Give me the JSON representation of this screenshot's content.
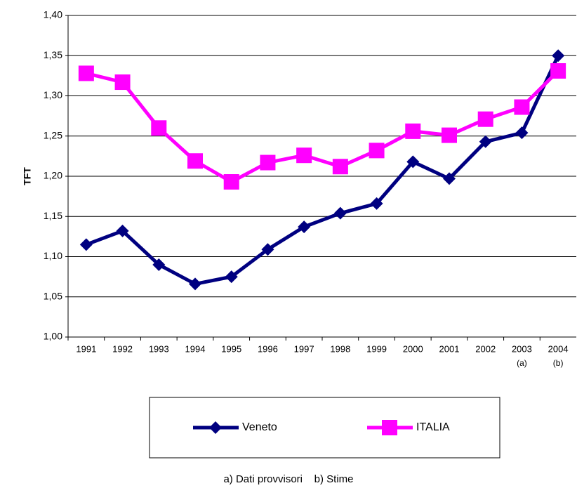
{
  "chart_data": {
    "type": "line",
    "y_label": "TFT",
    "categories": [
      [
        "1991"
      ],
      [
        "1992"
      ],
      [
        "1993"
      ],
      [
        "1994"
      ],
      [
        "1995"
      ],
      [
        "1996"
      ],
      [
        "1997"
      ],
      [
        "1998"
      ],
      [
        "1999"
      ],
      [
        "2000"
      ],
      [
        "2001"
      ],
      [
        "2002"
      ],
      [
        "2003",
        "(a)"
      ],
      [
        "2004",
        "(b)"
      ]
    ],
    "series": [
      {
        "name": "Veneto",
        "color": "#000080",
        "marker": "diamond",
        "values": [
          1.115,
          1.132,
          1.09,
          1.066,
          1.075,
          1.109,
          1.137,
          1.154,
          1.166,
          1.218,
          1.197,
          1.243,
          1.254,
          1.35
        ]
      },
      {
        "name": "ITALIA",
        "color": "#ff00ff",
        "marker": "square",
        "values": [
          1.328,
          1.317,
          1.26,
          1.219,
          1.193,
          1.217,
          1.226,
          1.212,
          1.232,
          1.256,
          1.251,
          1.271,
          1.286,
          1.331
        ]
      }
    ],
    "ylim": [
      1.0,
      1.4
    ],
    "yticks": [
      {
        "value": 1.0,
        "label": "1,00"
      },
      {
        "value": 1.05,
        "label": "1,05"
      },
      {
        "value": 1.1,
        "label": "1,10"
      },
      {
        "value": 1.15,
        "label": "1,15"
      },
      {
        "value": 1.2,
        "label": "1,20"
      },
      {
        "value": 1.25,
        "label": "1,25"
      },
      {
        "value": 1.3,
        "label": "1,30"
      },
      {
        "value": 1.35,
        "label": "1,35"
      },
      {
        "value": 1.4,
        "label": "1,40"
      }
    ],
    "grid": true,
    "legend": "bottom",
    "note": "a) Dati provvisori    b) Stime"
  }
}
